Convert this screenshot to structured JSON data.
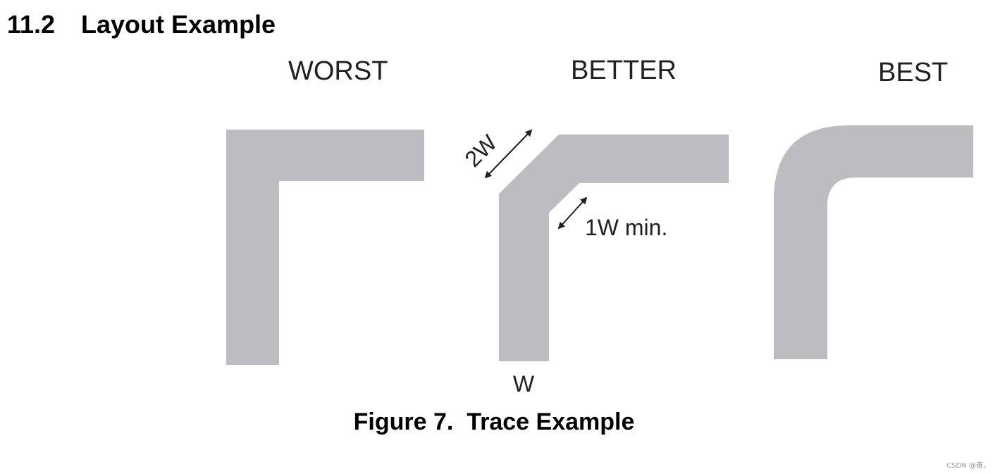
{
  "section": {
    "number": "11.2",
    "title": "Layout Example"
  },
  "columns": {
    "worst": "WORST",
    "better": "BETTER",
    "best": "BEST"
  },
  "annotations": {
    "diagonal_width": "2W",
    "clearance": "1W min.",
    "trace_width": "W"
  },
  "caption": "Figure 7.  Trace Example",
  "watermark": "CSDN @善，",
  "colors": {
    "trace": "#bcbdc0",
    "text": "#231f20",
    "arrow": "#231f20"
  }
}
